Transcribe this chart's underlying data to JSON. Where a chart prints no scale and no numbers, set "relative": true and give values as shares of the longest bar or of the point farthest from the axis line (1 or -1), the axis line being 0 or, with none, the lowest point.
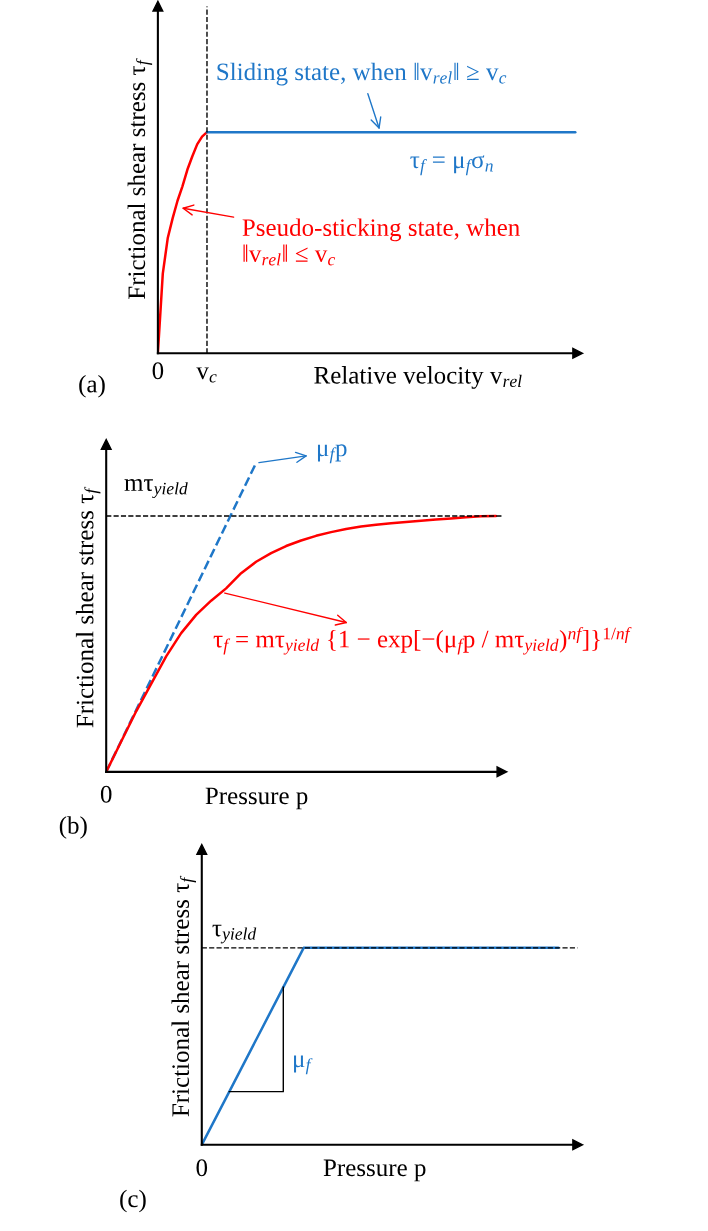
{
  "chart_data": [
    {
      "type": "line",
      "title": "(a)",
      "xlabel": "Relative velocity v$_{rel}$",
      "ylabel": "Frictional shear stress τ$_{f}$",
      "relative": true,
      "tick_labels": "x",
      "grid": false,
      "categories": [
        "0",
        null,
        null,
        null,
        null,
        null,
        null,
        null,
        null,
        null,
        "v$_{c}$",
        null,
        null,
        null,
        null,
        null,
        null,
        null,
        null,
        null,
        null,
        null,
        null,
        null,
        null,
        null,
        null,
        null,
        null,
        null,
        null,
        null,
        null,
        null,
        null,
        null,
        null,
        null,
        null,
        null,
        null,
        null,
        null,
        null,
        null,
        null,
        null,
        null,
        null,
        null,
        null,
        null,
        null,
        null,
        null,
        null,
        null,
        null,
        null,
        null,
        null,
        null,
        null,
        null,
        null,
        null,
        null,
        null,
        null,
        null,
        null,
        null,
        null,
        null,
        null,
        null,
        null,
        null,
        null,
        null,
        null,
        null,
        null,
        null,
        null,
        null
      ],
      "series": [
        {
          "color": "#ff0000",
          "line_style": "solid",
          "values": [
            0,
            0.36,
            0.52,
            0.61,
            0.69,
            0.755,
            0.83,
            0.89,
            0.945,
            0.98,
            1,
            null,
            null,
            null,
            null,
            null,
            null,
            null,
            null,
            null,
            null,
            null,
            null,
            null,
            null,
            null,
            null,
            null,
            null,
            null,
            null,
            null,
            null,
            null,
            null,
            null,
            null,
            null,
            null,
            null,
            null,
            null,
            null,
            null,
            null,
            null,
            null,
            null,
            null,
            null,
            null,
            null,
            null,
            null,
            null,
            null,
            null,
            null,
            null,
            null,
            null,
            null,
            null,
            null,
            null,
            null,
            null,
            null,
            null,
            null,
            null,
            null,
            null,
            null,
            null,
            null,
            null,
            null,
            null,
            null,
            null,
            null,
            null,
            null,
            null,
            null
          ]
        },
        {
          "color": "#1f77c8",
          "line_style": "solid",
          "values": [
            null,
            null,
            null,
            null,
            null,
            null,
            null,
            null,
            null,
            null,
            1,
            1,
            1,
            1,
            1,
            1,
            1,
            1,
            1,
            1,
            1,
            1,
            1,
            1,
            1,
            1,
            1,
            1,
            1,
            1,
            1,
            1,
            1,
            1,
            1,
            1,
            1,
            1,
            1,
            1,
            1,
            1,
            1,
            1,
            1,
            1,
            1,
            1,
            1,
            1,
            1,
            1,
            1,
            1,
            1,
            1,
            1,
            1,
            1,
            1,
            1,
            1,
            1,
            1,
            1,
            1,
            1,
            1,
            1,
            1,
            1,
            1,
            1,
            1,
            1,
            1,
            1,
            1,
            1,
            1,
            1,
            1,
            1,
            1,
            1,
            1
          ]
        }
      ],
      "ref_lines": [
        {
          "axis": "x",
          "value": "v$_{c}$",
          "color": "#000000",
          "line_style": "dashed"
        }
      ],
      "annotations": [
        "Sliding state, when ‖v$_{rel}$‖ ≥ v$_{c}$",
        "τ$_{f}$ = μ$_{f}$σ$_{n}$",
        "Pseudo-sticking state, when\n‖v$_{rel}$‖ ≤ v$_{c}$"
      ]
    },
    {
      "type": "line",
      "title": "(b)",
      "xlabel": "Pressure p",
      "ylabel": "Frictional shear stress τ$_{f}$",
      "relative": true,
      "tick_labels": "x",
      "grid": false,
      "categories": [
        null,
        null,
        null,
        null,
        null,
        null,
        null,
        null,
        null,
        null,
        null,
        null,
        null,
        null,
        null,
        null,
        null,
        null,
        null,
        null,
        null,
        null,
        null,
        null,
        null,
        null,
        null
      ],
      "series": [
        {
          "color": "#1f77c8",
          "line_style": "dashed",
          "values": [
            0,
            0.1,
            0.2,
            0.3,
            0.4,
            0.5,
            0.6,
            0.7,
            0.8,
            0.9,
            1,
            null,
            null,
            null,
            null,
            null,
            null,
            null,
            null,
            null,
            null,
            null,
            null,
            null,
            null,
            null,
            null
          ]
        },
        {
          "color": "#ff0000",
          "line_style": "solid",
          "values": [
            0,
            0.098,
            0.196,
            0.285,
            0.374,
            0.449,
            0.508,
            0.554,
            0.594,
            0.643,
            0.68,
            0.708,
            0.731,
            0.749,
            0.764,
            0.776,
            0.786,
            0.794,
            0.8,
            0.805,
            0.809,
            0.813,
            0.817,
            0.82,
            0.824,
            0.827,
            0.828
          ]
        }
      ],
      "ref_lines": [
        {
          "axis": "y",
          "value": 0.828,
          "label": "mτ$_{yield}$",
          "color": "#000000",
          "line_style": "dashed"
        }
      ],
      "annotations": [
        "μ$_{f}$p",
        "τ$_{f}$ = mτ$_{yield}$ {1 − exp[−(μ$_{f}$p / mτ$_{yield}$)$^{nf}$]}$^{1/nf}$",
        "0"
      ]
    },
    {
      "type": "line",
      "title": "(c)",
      "xlabel": "Pressure p",
      "ylabel": "Frictional shear stress τ$_{f}$",
      "relative": true,
      "tick_labels": "x",
      "grid": false,
      "categories": [
        null,
        null,
        null,
        null,
        null,
        null,
        null,
        null,
        null,
        null,
        null,
        null,
        null,
        null,
        null
      ],
      "series": [
        {
          "color": "#1f77c8",
          "line_style": "solid",
          "values": [
            0,
            0.25,
            0.5,
            0.75,
            1,
            1,
            1,
            1,
            1,
            1,
            1,
            1,
            1,
            1,
            1
          ]
        }
      ],
      "ref_lines": [
        {
          "axis": "y",
          "value": 1,
          "label": "τ$_{yield}$",
          "color": "#000000",
          "line_style": "dashed"
        }
      ],
      "annotations": [
        "μ$_{f}$",
        "0"
      ]
    }
  ]
}
